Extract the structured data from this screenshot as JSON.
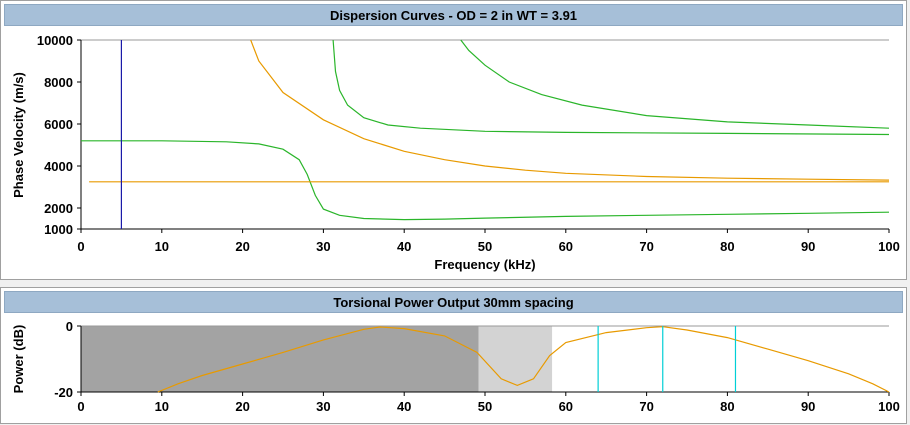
{
  "chart_data": [
    {
      "type": "line",
      "title": "Dispersion Curves - OD = 2 in WT = 3.91",
      "xlabel": "Frequency (kHz)",
      "ylabel": "Phase Velocity (m/s)",
      "xlim": [
        0,
        100
      ],
      "ylim": [
        1000,
        10000
      ],
      "x_ticks": [
        "0",
        "10",
        "20",
        "30",
        "40",
        "50",
        "60",
        "70",
        "80",
        "90",
        "100"
      ],
      "y_ticks": [
        "1000",
        "2000",
        "4000",
        "6000",
        "8000",
        "10000"
      ],
      "y_tick_values": [
        1000,
        2000,
        4000,
        6000,
        8000,
        10000
      ],
      "grid": "horizontal lines at 1000 and 10000",
      "series": [
        {
          "color": "#2ab52a",
          "points": [
            [
              0,
              5200
            ],
            [
              10,
              5200
            ],
            [
              18,
              5150
            ],
            [
              22,
              5050
            ],
            [
              25,
              4800
            ],
            [
              27,
              4300
            ],
            [
              28,
              3600
            ],
            [
              29,
              2600
            ],
            [
              30,
              1950
            ],
            [
              32,
              1650
            ],
            [
              35,
              1500
            ],
            [
              40,
              1450
            ],
            [
              45,
              1470
            ],
            [
              50,
              1520
            ],
            [
              60,
              1600
            ],
            [
              70,
              1650
            ],
            [
              80,
              1700
            ],
            [
              90,
              1750
            ],
            [
              100,
              1800
            ]
          ]
        },
        {
          "color": "#2ab52a",
          "points": [
            [
              31.2,
              10000
            ],
            [
              31.5,
              8500
            ],
            [
              32,
              7600
            ],
            [
              33,
              6900
            ],
            [
              35,
              6300
            ],
            [
              38,
              5950
            ],
            [
              42,
              5800
            ],
            [
              50,
              5650
            ],
            [
              60,
              5600
            ],
            [
              80,
              5550
            ],
            [
              100,
              5500
            ]
          ]
        },
        {
          "color": "#2ab52a",
          "points": [
            [
              47,
              10000
            ],
            [
              48,
              9500
            ],
            [
              50,
              8800
            ],
            [
              53,
              8000
            ],
            [
              57,
              7400
            ],
            [
              62,
              6900
            ],
            [
              70,
              6400
            ],
            [
              80,
              6100
            ],
            [
              90,
              5950
            ],
            [
              100,
              5800
            ]
          ]
        },
        {
          "color": "#e89a00",
          "points": [
            [
              21,
              10000
            ],
            [
              22,
              9000
            ],
            [
              25,
              7500
            ],
            [
              30,
              6200
            ],
            [
              35,
              5300
            ],
            [
              40,
              4700
            ],
            [
              45,
              4300
            ],
            [
              50,
              4000
            ],
            [
              55,
              3800
            ],
            [
              60,
              3650
            ],
            [
              70,
              3500
            ],
            [
              80,
              3420
            ],
            [
              90,
              3370
            ],
            [
              100,
              3330
            ]
          ]
        },
        {
          "color": "#e89a00",
          "points": [
            [
              1,
              3250
            ],
            [
              100,
              3250
            ]
          ]
        }
      ],
      "markers": [
        {
          "x": 5,
          "color": "#1a1aa8",
          "from": 1000,
          "to": 10000
        }
      ]
    },
    {
      "type": "line",
      "title": "Torsional Power Output   30mm spacing",
      "xlabel": "",
      "ylabel": "Power (dB)",
      "xlim": [
        0,
        100
      ],
      "ylim": [
        -20,
        0
      ],
      "x_ticks": [
        "0",
        "10",
        "20",
        "30",
        "40",
        "50",
        "60",
        "70",
        "80",
        "90",
        "100"
      ],
      "y_ticks": [
        "-20",
        "0"
      ],
      "y_tick_values": [
        -20,
        0
      ],
      "shaded_regions": [
        {
          "from": 0,
          "to": 49.2,
          "color": "#a3a3a3"
        },
        {
          "from": 49.2,
          "to": 58.3,
          "color": "#d3d3d3"
        }
      ],
      "series": [
        {
          "color": "#e89a00",
          "points": [
            [
              9.5,
              -20
            ],
            [
              12,
              -17.5
            ],
            [
              15,
              -15
            ],
            [
              20,
              -11.5
            ],
            [
              25,
              -8
            ],
            [
              30,
              -4.2
            ],
            [
              35,
              -1
            ],
            [
              37,
              -0.3
            ],
            [
              40,
              -0.8
            ],
            [
              45,
              -3
            ],
            [
              49,
              -8
            ],
            [
              52,
              -16
            ],
            [
              54,
              -18
            ],
            [
              56,
              -16
            ],
            [
              58,
              -9
            ],
            [
              60,
              -5
            ],
            [
              65,
              -2
            ],
            [
              70,
              -0.5
            ],
            [
              72,
              -0.2
            ],
            [
              75,
              -1.2
            ],
            [
              80,
              -3.5
            ],
            [
              85,
              -7
            ],
            [
              90,
              -10.5
            ],
            [
              95,
              -14.5
            ],
            [
              98,
              -17.5
            ],
            [
              100,
              -20
            ]
          ]
        }
      ],
      "markers": [
        {
          "x": 64,
          "color": "#00cfd6",
          "from": -20,
          "to": 0
        },
        {
          "x": 72,
          "color": "#00cfd6",
          "from": -20,
          "to": 0
        },
        {
          "x": 81,
          "color": "#00cfd6",
          "from": -20,
          "to": 0
        }
      ]
    }
  ]
}
